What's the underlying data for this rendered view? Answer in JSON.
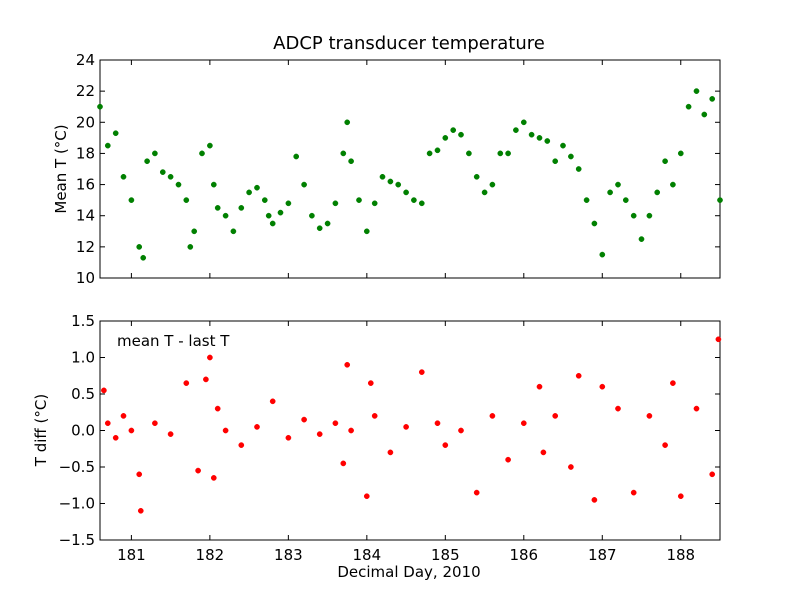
{
  "figure": {
    "title": "ADCP transducer temperature",
    "xlabel": "Decimal Day, 2010"
  },
  "chart_data": [
    {
      "type": "scatter",
      "title": "ADCP transducer temperature",
      "xlabel": "",
      "ylabel": "Mean T (°C)",
      "xlim": [
        180.6,
        188.5
      ],
      "ylim": [
        10,
        24
      ],
      "xticks": [
        181,
        182,
        183,
        184,
        185,
        186,
        187,
        188
      ],
      "xtick_labels": [
        "",
        "",
        "",
        "",
        "",
        "",
        "",
        ""
      ],
      "yticks": [
        10,
        12,
        14,
        16,
        18,
        20,
        22,
        24
      ],
      "ytick_labels": [
        "10",
        "12",
        "14",
        "16",
        "18",
        "20",
        "22",
        "24"
      ],
      "grid": false,
      "color": "#008000",
      "series": [
        {
          "x": [
            180.6,
            180.7,
            180.8,
            180.9,
            181.0,
            181.1,
            181.15,
            181.2,
            181.3,
            181.4,
            181.5,
            181.6,
            181.7,
            181.75,
            181.8,
            181.9,
            182.0,
            182.05,
            182.1,
            182.2,
            182.3,
            182.4,
            182.5,
            182.6,
            182.7,
            182.75,
            182.8,
            182.9,
            183.0,
            183.1,
            183.2,
            183.3,
            183.4,
            183.5,
            183.6,
            183.7,
            183.75,
            183.8,
            183.9,
            184.0,
            184.1,
            184.2,
            184.3,
            184.4,
            184.5,
            184.6,
            184.7,
            184.8,
            184.9,
            185.0,
            185.1,
            185.2,
            185.3,
            185.4,
            185.5,
            185.6,
            185.7,
            185.8,
            185.9,
            186.0,
            186.1,
            186.2,
            186.3,
            186.4,
            186.5,
            186.6,
            186.7,
            186.8,
            186.9,
            187.0,
            187.1,
            187.2,
            187.3,
            187.4,
            187.5,
            187.6,
            187.7,
            187.8,
            187.9,
            188.0,
            188.1,
            188.2,
            188.3,
            188.4,
            188.5
          ],
          "y": [
            21.0,
            18.5,
            19.3,
            16.5,
            15.0,
            12.0,
            11.3,
            17.5,
            18.0,
            16.8,
            16.5,
            16.0,
            15.0,
            12.0,
            13.0,
            18.0,
            18.5,
            16.0,
            14.5,
            14.0,
            13.0,
            14.5,
            15.5,
            15.8,
            15.0,
            14.0,
            13.5,
            14.2,
            14.8,
            17.8,
            16.0,
            14.0,
            13.2,
            13.5,
            14.8,
            18.0,
            20.0,
            17.5,
            15.0,
            13.0,
            14.8,
            16.5,
            16.2,
            16.0,
            15.5,
            15.0,
            14.8,
            18.0,
            18.2,
            19.0,
            19.5,
            19.2,
            18.0,
            16.5,
            15.5,
            16.0,
            18.0,
            18.0,
            19.5,
            20.0,
            19.2,
            19.0,
            18.8,
            17.5,
            18.5,
            17.8,
            17.0,
            15.0,
            13.5,
            11.5,
            15.5,
            16.0,
            15.0,
            14.0,
            12.5,
            14.0,
            15.5,
            17.5,
            16.0,
            18.0,
            21.0,
            22.0,
            20.5,
            21.5,
            15.0
          ]
        }
      ]
    },
    {
      "type": "scatter",
      "xlabel": "Decimal Day, 2010",
      "ylabel": "T diff (°C)",
      "annotation": "mean T - last T",
      "xlim": [
        180.6,
        188.5
      ],
      "ylim": [
        -1.5,
        1.5
      ],
      "xticks": [
        181,
        182,
        183,
        184,
        185,
        186,
        187,
        188
      ],
      "xtick_labels": [
        "181",
        "182",
        "183",
        "184",
        "185",
        "186",
        "187",
        "188"
      ],
      "yticks": [
        -1.5,
        -1.0,
        -0.5,
        0.0,
        0.5,
        1.0,
        1.5
      ],
      "ytick_labels": [
        "−1.5",
        "−1.0",
        "−0.5",
        "0.0",
        "0.5",
        "1.0",
        "1.5"
      ],
      "grid": false,
      "color": "#ff0000",
      "series": [
        {
          "x": [
            180.65,
            180.7,
            180.8,
            180.9,
            181.0,
            181.1,
            181.12,
            181.3,
            181.5,
            181.7,
            181.85,
            181.95,
            182.0,
            182.05,
            182.1,
            182.2,
            182.4,
            182.6,
            182.8,
            183.0,
            183.2,
            183.4,
            183.6,
            183.7,
            183.75,
            183.8,
            184.0,
            184.05,
            184.1,
            184.3,
            184.5,
            184.7,
            184.9,
            185.0,
            185.2,
            185.4,
            185.6,
            185.8,
            186.0,
            186.2,
            186.25,
            186.4,
            186.6,
            186.7,
            186.9,
            187.0,
            187.2,
            187.4,
            187.6,
            187.8,
            187.9,
            188.0,
            188.2,
            188.4,
            188.48
          ],
          "y": [
            0.55,
            0.1,
            -0.1,
            0.2,
            0.0,
            -0.6,
            -1.1,
            0.1,
            -0.05,
            0.65,
            -0.55,
            0.7,
            1.0,
            -0.65,
            0.3,
            0.0,
            -0.2,
            0.05,
            0.4,
            -0.1,
            0.15,
            -0.05,
            0.1,
            -0.45,
            0.9,
            0.0,
            -0.9,
            0.65,
            0.2,
            -0.3,
            0.05,
            0.8,
            0.1,
            -0.2,
            0.0,
            -0.85,
            0.2,
            -0.4,
            0.1,
            0.6,
            -0.3,
            0.2,
            -0.5,
            0.75,
            -0.95,
            0.6,
            0.3,
            -0.85,
            0.2,
            -0.2,
            0.65,
            -0.9,
            0.3,
            -0.6,
            1.25
          ]
        }
      ]
    }
  ]
}
